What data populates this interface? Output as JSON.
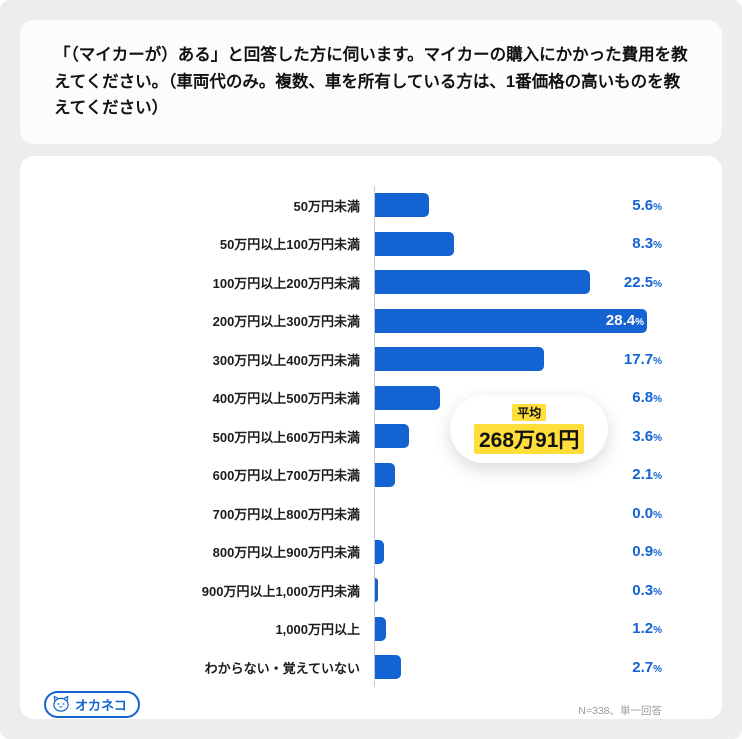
{
  "page": {
    "background": "#ededed",
    "card_background": "#ffffff",
    "accent_blue": "#1463d3",
    "highlight_yellow": "#ffde3b"
  },
  "question": {
    "text": "「（マイカーが）ある」と回答した方に伺います。マイカーの購入にかかった費用を教えてください。（車両代のみ。複数、車を所有している方は、1番価格の高いものを教えてください）"
  },
  "chart_data": {
    "type": "bar",
    "orientation": "horizontal",
    "title": "「（マイカーが）ある」と回答した方に伺います。マイカーの購入にかかった費用を教えてください。（車両代のみ。複数、車を所有している方は、1番価格の高いものを教えてください）",
    "categories": [
      "50万円未満",
      "50万円以上100万円未満",
      "100万円以上200万円未満",
      "200万円以上300万円未満",
      "300万円以上400万円未満",
      "400万円以上500万円未満",
      "500万円以上600万円未満",
      "600万円以上700万円未満",
      "700万円以上800万円未満",
      "800万円以上900万円未満",
      "900万円以上1,000万円未満",
      "1,000万円以上",
      "わからない・覚えていない"
    ],
    "values": [
      5.6,
      8.3,
      22.5,
      28.4,
      17.7,
      6.8,
      3.6,
      2.1,
      0.0,
      0.9,
      0.3,
      1.2,
      2.7
    ],
    "value_unit": "%",
    "xlim": [
      0,
      30
    ],
    "grid": false,
    "bar_color": "#1463d3",
    "average": {
      "label": "平均",
      "value": "268万91円"
    },
    "note": "N=338、単一回答"
  },
  "footer": {
    "logo_text": "オカネコ",
    "note": "N=338、単一回答"
  }
}
